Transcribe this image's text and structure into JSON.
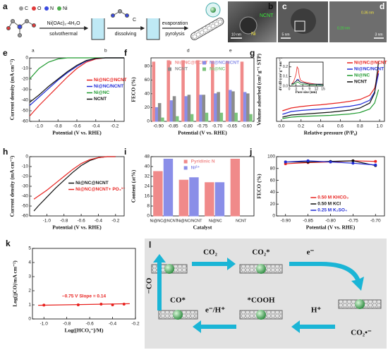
{
  "schematic": {
    "panel": "a",
    "atoms": [
      "C",
      "O",
      "N",
      "Ni"
    ],
    "reagent": "Ni(OAc)₂·4H₂O",
    "steps": [
      "solvothermal",
      "dissolving",
      "evaporation",
      "pyrolysis"
    ],
    "additive": "C",
    "stage_labels": [
      "a",
      "b",
      "d",
      "e"
    ]
  },
  "images": [
    {
      "panel": "b",
      "labels": [
        "NCNT",
        "Ni"
      ],
      "scale": "10 nm"
    },
    {
      "panel": "c",
      "scale": "5 nm"
    },
    {
      "panel": "d",
      "labels": [
        "0.36 nm",
        "0.20 nm"
      ],
      "scale": "3 nm"
    }
  ],
  "chart_data": [
    {
      "type": "line",
      "panel": "e",
      "xlabel": "Potential (V vs. RHE)",
      "ylabel": "Current density (mA cm⁻²)",
      "xlim": [
        -1.1,
        -0.1
      ],
      "xticks": [
        {
          "value": -1,
          "label": "-1.0"
        },
        -0.8,
        -0.6,
        -0.4,
        -0.2
      ],
      "ylim": [
        -60,
        0
      ],
      "yticks": [
        -60,
        -50,
        -40,
        -30,
        -20,
        -10,
        0
      ],
      "legend": "center right",
      "x": [
        -1.1,
        -1.0,
        -0.9,
        -0.8,
        -0.7,
        -0.6,
        -0.5,
        -0.4,
        -0.3,
        -0.2,
        -0.1
      ],
      "series": [
        {
          "name": "Ni@NC@NCNT",
          "color": "#e8221f",
          "values": [
            -55,
            -45,
            -36,
            -27,
            -18,
            -10,
            -4,
            -1,
            0,
            0,
            0
          ]
        },
        {
          "name": "Ni@NC/NCNT",
          "color": "#1f2ad6",
          "values": [
            -45,
            -37,
            -29,
            -21,
            -14,
            -8,
            -3,
            -0.5,
            0,
            0,
            0
          ]
        },
        {
          "name": "Ni@NC",
          "color": "#1f9a2f",
          "values": [
            -20,
            -10,
            -4,
            -1,
            0,
            0,
            0,
            0,
            0,
            0,
            0
          ]
        },
        {
          "name": "NCNT",
          "color": "#111111",
          "values": [
            -42,
            -35,
            -27,
            -20,
            -13,
            -7,
            -2.5,
            -0.5,
            0,
            0,
            0
          ]
        }
      ]
    },
    {
      "type": "bar",
      "panel": "f",
      "xlabel": "Potential (V vs. RHE)",
      "ylabel": "FECO (%)",
      "categories": [
        "-0.90",
        "-0.85",
        "-0.80",
        "-0.75",
        "-0.70",
        "-0.65",
        "-0.60"
      ],
      "ylim": [
        0,
        92
      ],
      "yticks": [
        0,
        20,
        40,
        60,
        80
      ],
      "legend": "upper center",
      "legend_columns": 2,
      "series": [
        {
          "name": "Ni@NC@NCNT",
          "color": "#f08a8a",
          "values": [
            86,
            88,
            88,
            88,
            87,
            87,
            86
          ]
        },
        {
          "name": "Ni@NC/NCNT",
          "color": "#8a8ee8",
          "values": [
            20,
            30,
            36,
            38,
            40,
            45,
            42
          ]
        },
        {
          "name": "NCNT",
          "color": "#8c8c8c",
          "values": [
            26,
            36,
            38,
            38,
            42,
            43,
            40
          ]
        },
        {
          "name": "Ni@NC",
          "color": "#7cc47c",
          "values": [
            5,
            7,
            10,
            12,
            12,
            12,
            10
          ]
        }
      ]
    },
    {
      "type": "line",
      "panel": "g",
      "xlabel": "Relative pressure (P/P₀)",
      "ylabel": "Volume adsorbed (cm³ g⁻¹ STP)",
      "xlim": [
        -0.05,
        1.05
      ],
      "xticks": [
        {
          "value": 0,
          "label": "0.0"
        },
        0.2,
        0.4,
        0.6,
        0.8,
        {
          "value": 1,
          "label": "1.0"
        }
      ],
      "ylim": [
        0,
        900
      ],
      "legend": "upper right",
      "x": [
        0.01,
        0.1,
        0.2,
        0.3,
        0.4,
        0.5,
        0.6,
        0.7,
        0.8,
        0.9,
        0.95,
        0.99
      ],
      "series": [
        {
          "name": "Ni@NC@NCNT",
          "color": "#e8221f",
          "values": [
            150,
            190,
            210,
            225,
            235,
            250,
            265,
            285,
            310,
            370,
            470,
            720
          ]
        },
        {
          "name": "Ni@NC/NCNT",
          "color": "#1f2ad6",
          "values": [
            100,
            140,
            155,
            165,
            175,
            185,
            200,
            215,
            240,
            300,
            420,
            680
          ]
        },
        {
          "name": "Ni@NC",
          "color": "#1f9a2f",
          "values": [
            40,
            60,
            70,
            75,
            80,
            85,
            95,
            105,
            125,
            175,
            260,
            450
          ]
        },
        {
          "name": "NCNT",
          "color": "#111111",
          "values": [
            60,
            90,
            100,
            110,
            120,
            130,
            145,
            160,
            190,
            260,
            400,
            850
          ]
        }
      ]
    },
    {
      "type": "line",
      "xlabel": "Pore size (nm)",
      "ylabel": "dV/dD (cm³ g⁻¹ nm⁻¹)",
      "xlim": [
        0,
        15
      ],
      "xticks": [
        0,
        3,
        6,
        9,
        12,
        15
      ],
      "ylim": [
        0,
        0.25
      ],
      "yticks": [
        {
          "value": 0,
          "label": "0.0"
        },
        0.1,
        0.2
      ],
      "x": [
        1,
        2,
        3,
        3.5,
        4,
        4.5,
        5,
        7,
        9,
        12,
        15
      ],
      "series": [
        {
          "color": "#e8221f",
          "values": [
            0.02,
            0.05,
            0.12,
            0.2,
            0.18,
            0.1,
            0.06,
            0.04,
            0.03,
            0.02,
            0.02
          ]
        },
        {
          "color": "#1f2ad6",
          "values": [
            0.02,
            0.03,
            0.05,
            0.07,
            0.07,
            0.05,
            0.04,
            0.03,
            0.02,
            0.02,
            0.01
          ]
        },
        {
          "color": "#1f9a2f",
          "values": [
            0.01,
            0.02,
            0.03,
            0.04,
            0.04,
            0.03,
            0.02,
            0.02,
            0.01,
            0.01,
            0.01
          ]
        },
        {
          "color": "#111111",
          "values": [
            0.02,
            0.03,
            0.05,
            0.06,
            0.06,
            0.05,
            0.04,
            0.03,
            0.02,
            0.02,
            0.02
          ]
        }
      ]
    },
    {
      "type": "line",
      "panel": "h",
      "xlabel": "Potential (V vs. RHE)",
      "ylabel": "Current density (mA cm⁻²)",
      "xlim": [
        -1.2,
        -0.1
      ],
      "xticks": [
        {
          "value": -1,
          "label": "-1.0"
        },
        -0.8,
        -0.6,
        -0.4,
        -0.2
      ],
      "ylim": [
        -60,
        0
      ],
      "yticks": [
        -60,
        -50,
        -40,
        -30,
        -20,
        -10,
        0
      ],
      "legend": "center right",
      "x": [
        -1.15,
        -1.1,
        -1.0,
        -0.9,
        -0.8,
        -0.7,
        -0.6,
        -0.5,
        -0.4,
        -0.3,
        -0.2
      ],
      "series": [
        {
          "name": "Ni@NC@NCNT",
          "color": "#111111",
          "values": [
            -55,
            -50,
            -41,
            -32,
            -24,
            -16,
            -9,
            -4,
            -1,
            0,
            0
          ]
        },
        {
          "name": "Ni@NC@NCNT+ PO₄³⁻",
          "color": "#e8221f",
          "values": [
            -43,
            -40,
            -34,
            -27,
            -20,
            -13,
            -7,
            -3,
            -1,
            0,
            0
          ]
        }
      ]
    },
    {
      "type": "bar",
      "panel": "i",
      "xlabel": "Catalyst",
      "ylabel": "Content (at%)",
      "categories": [
        "Ni@NC@NCNT",
        "Ni@NC/NCNT",
        "Ni@NC",
        "NCNT"
      ],
      "ylim": [
        0,
        48
      ],
      "yticks": [
        0,
        8,
        16,
        24,
        32,
        40,
        48
      ],
      "legend": "upper center",
      "series": [
        {
          "name": "Pyridinic N",
          "color": "#f08a8a",
          "values": [
            36,
            29,
            27,
            46
          ]
        },
        {
          "name": "Niᵟ⁺",
          "color": "#8a8ee8",
          "values": [
            46,
            31,
            27,
            null
          ]
        }
      ]
    },
    {
      "type": "line",
      "panel": "j",
      "xlabel": "Potential (V vs. RHE)",
      "ylabel": "FECO (%)",
      "xlim": [
        -0.92,
        -0.68
      ],
      "xticks": [
        {
          "value": -0.9,
          "label": "-0.90"
        },
        -0.85,
        {
          "value": -0.8,
          "label": "-0.80"
        },
        -0.75,
        {
          "value": -0.7,
          "label": "-0.70"
        }
      ],
      "ylim": [
        0,
        100
      ],
      "yticks": [
        0,
        20,
        40,
        60,
        80,
        100
      ],
      "legend": "lower center",
      "markers": true,
      "x": [
        -0.9,
        -0.85,
        -0.8,
        -0.75,
        -0.7
      ],
      "series": [
        {
          "name": "0.50 M KHCO₃",
          "color": "#e8221f",
          "values": [
            88,
            90,
            91,
            93,
            92
          ]
        },
        {
          "name": "0.50 M KCl",
          "color": "#111111",
          "values": [
            91,
            91,
            92,
            93,
            85
          ]
        },
        {
          "name": "0.25 M K₂SO₄",
          "color": "#1f2ad6",
          "values": [
            91,
            93,
            91,
            89,
            86
          ]
        }
      ]
    },
    {
      "type": "scatter",
      "panel": "k",
      "xlabel": "Log([HCO₃⁻]/M)",
      "ylabel": "Log(|jCO|/mA cm⁻²)",
      "annotation": "−0.75 V  Slope = 0.14",
      "xlim": [
        -1.1,
        -0.2
      ],
      "xticks": [
        {
          "value": -1,
          "label": "-1.0"
        },
        -0.8,
        -0.6,
        -0.4,
        -0.2
      ],
      "ylim": [
        0,
        5
      ],
      "yticks": [
        0,
        1,
        2,
        3,
        4,
        5
      ],
      "series": [
        {
          "color": "#e8221f",
          "x": [
            -1.0,
            -0.7,
            -0.5,
            -0.4,
            -0.3
          ],
          "values": [
            0.98,
            1.0,
            1.05,
            1.0,
            1.05
          ]
        },
        {
          "color": "#e8221f",
          "kind": "line",
          "x": [
            -1.05,
            -0.25
          ],
          "values": [
            0.97,
            1.08
          ]
        }
      ]
    }
  ],
  "mechanism": {
    "panel": "l",
    "species": [
      "CO₂",
      "CO₂*",
      "e⁻",
      "CO₂•⁻",
      "H⁺",
      "*COOH",
      "e⁻/H⁺",
      "CO*",
      "−CO"
    ]
  }
}
